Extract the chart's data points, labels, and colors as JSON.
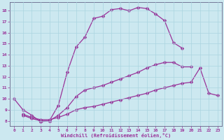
{
  "xlabel": "Windchill (Refroidissement éolien,°C)",
  "bg_color": "#cce8f0",
  "grid_color": "#aad4e0",
  "line_color": "#993399",
  "xlim": [
    -0.5,
    23.5
  ],
  "ylim": [
    7.5,
    18.8
  ],
  "yticks": [
    8,
    9,
    10,
    11,
    12,
    13,
    14,
    15,
    16,
    17,
    18
  ],
  "xticks": [
    0,
    1,
    2,
    3,
    4,
    5,
    6,
    7,
    8,
    9,
    10,
    11,
    12,
    13,
    14,
    15,
    16,
    17,
    18,
    19,
    20,
    21,
    22,
    23
  ],
  "line1_x": [
    0,
    1,
    2,
    3,
    4,
    5,
    6,
    7,
    8,
    9,
    10,
    11,
    12,
    13,
    14,
    15,
    16,
    17,
    18,
    19
  ],
  "line1_y": [
    10.0,
    9.0,
    8.5,
    7.9,
    8.0,
    9.4,
    12.4,
    14.7,
    15.6,
    17.3,
    17.5,
    18.1,
    18.2,
    18.0,
    18.3,
    18.2,
    17.7,
    17.1,
    15.1,
    14.6
  ],
  "line2_x": [
    1,
    2,
    3,
    4,
    5,
    6,
    7,
    8,
    9,
    10,
    11,
    12,
    13,
    14,
    15,
    16,
    17,
    18,
    19,
    20
  ],
  "line2_y": [
    8.5,
    8.2,
    8.0,
    8.0,
    8.5,
    9.2,
    10.2,
    10.8,
    11.0,
    11.2,
    11.5,
    11.8,
    12.1,
    12.4,
    12.8,
    13.1,
    13.3,
    13.3,
    12.9,
    12.9
  ],
  "line3_x": [
    1,
    2,
    3,
    4,
    5,
    6,
    7,
    8,
    9,
    10,
    11,
    12,
    13,
    14,
    15,
    16,
    17,
    18,
    19,
    20,
    21,
    22,
    23
  ],
  "line3_y": [
    8.6,
    8.3,
    8.1,
    8.1,
    8.3,
    8.6,
    9.0,
    9.2,
    9.3,
    9.5,
    9.7,
    9.9,
    10.1,
    10.3,
    10.5,
    10.8,
    11.0,
    11.2,
    11.4,
    11.5,
    12.8,
    10.5,
    10.3
  ],
  "marker_size": 2.5,
  "linewidth": 0.9
}
